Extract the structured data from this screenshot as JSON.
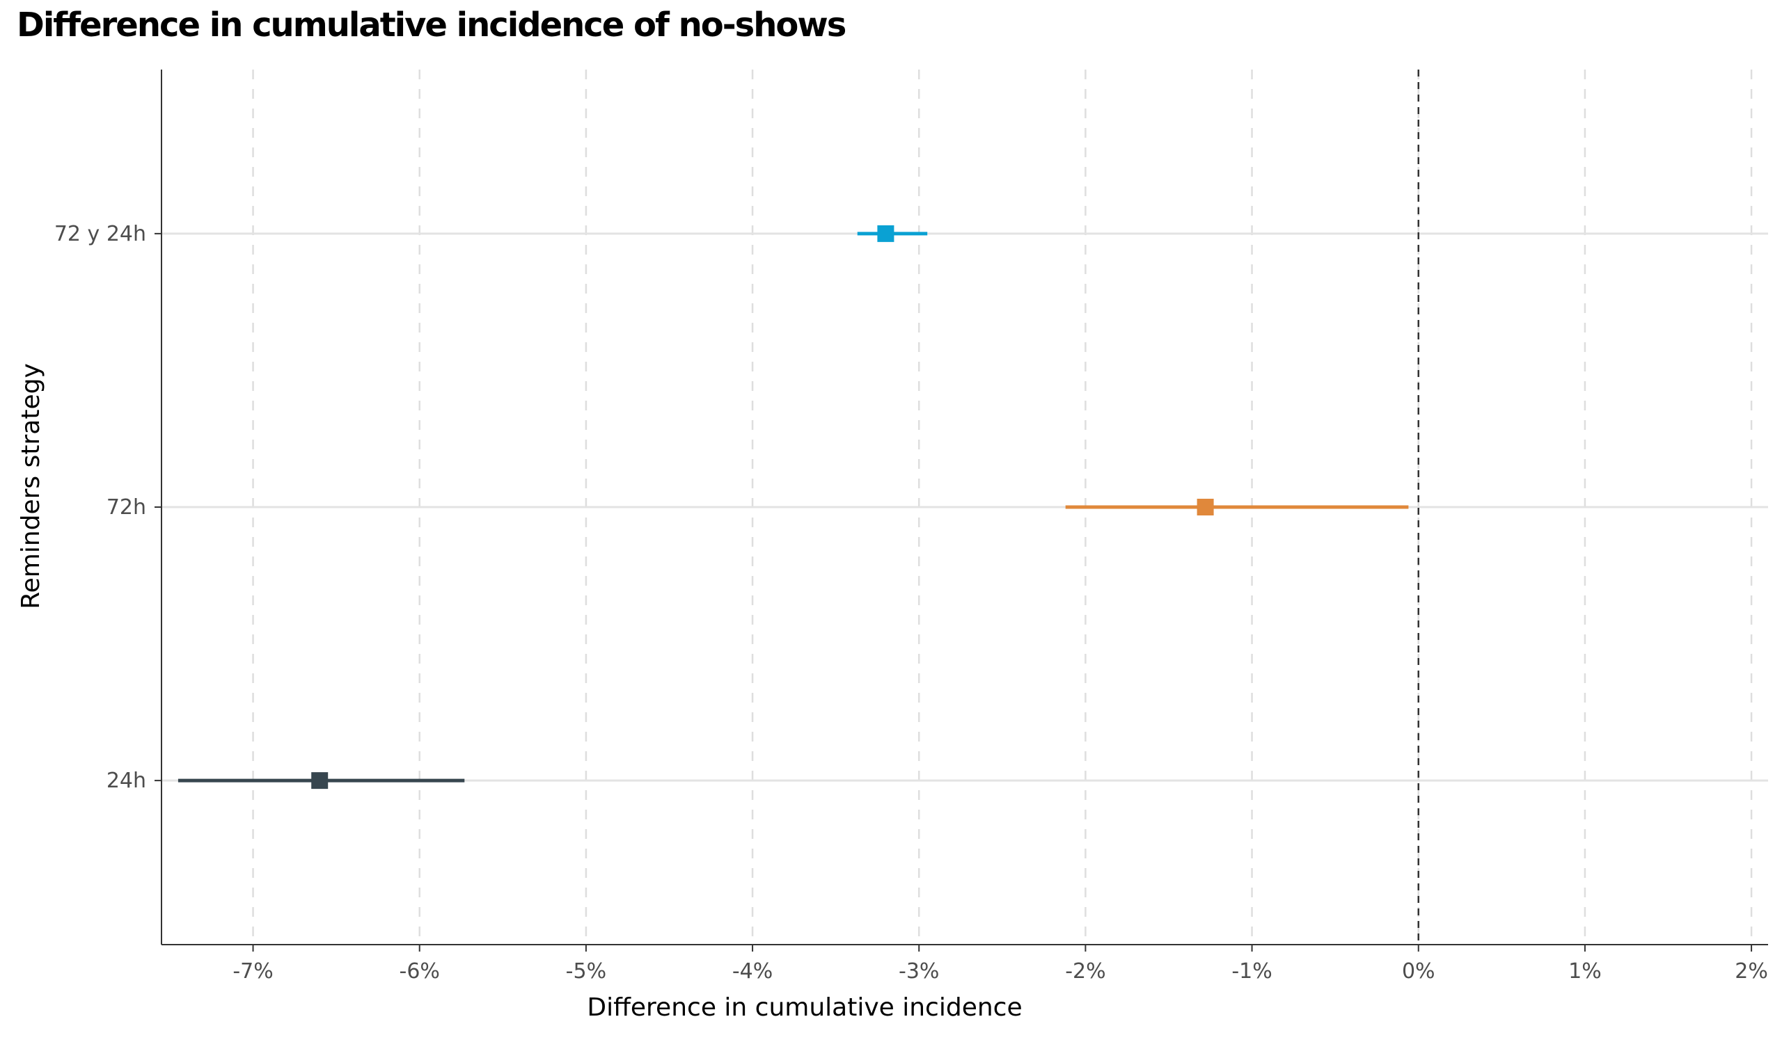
{
  "chart_data": {
    "type": "forest",
    "title": "Difference in cumulative incidence of no-shows",
    "xlabel": "Difference in cumulative incidence",
    "ylabel": "Reminders strategy",
    "x_unit": "%",
    "xlim": [
      -7.55,
      2.1
    ],
    "x_ticks": [
      -7,
      -6,
      -5,
      -4,
      -3,
      -2,
      -1,
      0,
      1,
      2
    ],
    "x_tick_labels": [
      "-7%",
      "-6%",
      "-5%",
      "-4%",
      "-3%",
      "-2%",
      "-1%",
      "0%",
      "1%",
      "2%"
    ],
    "categories": [
      "72 y 24h",
      "72h",
      "24h"
    ],
    "reference_line": 0,
    "grid": {
      "major_y": true,
      "major_x": "dashed"
    },
    "series": [
      {
        "category": "72 y 24h",
        "estimate": -3.2,
        "lower": -3.37,
        "upper": -2.95,
        "color": "#0aa1d3"
      },
      {
        "category": "72h",
        "estimate": -1.28,
        "lower": -2.12,
        "upper": -0.06,
        "color": "#e0883b"
      },
      {
        "category": "24h",
        "estimate": -6.6,
        "lower": -7.45,
        "upper": -5.73,
        "color": "#37464f"
      }
    ]
  }
}
